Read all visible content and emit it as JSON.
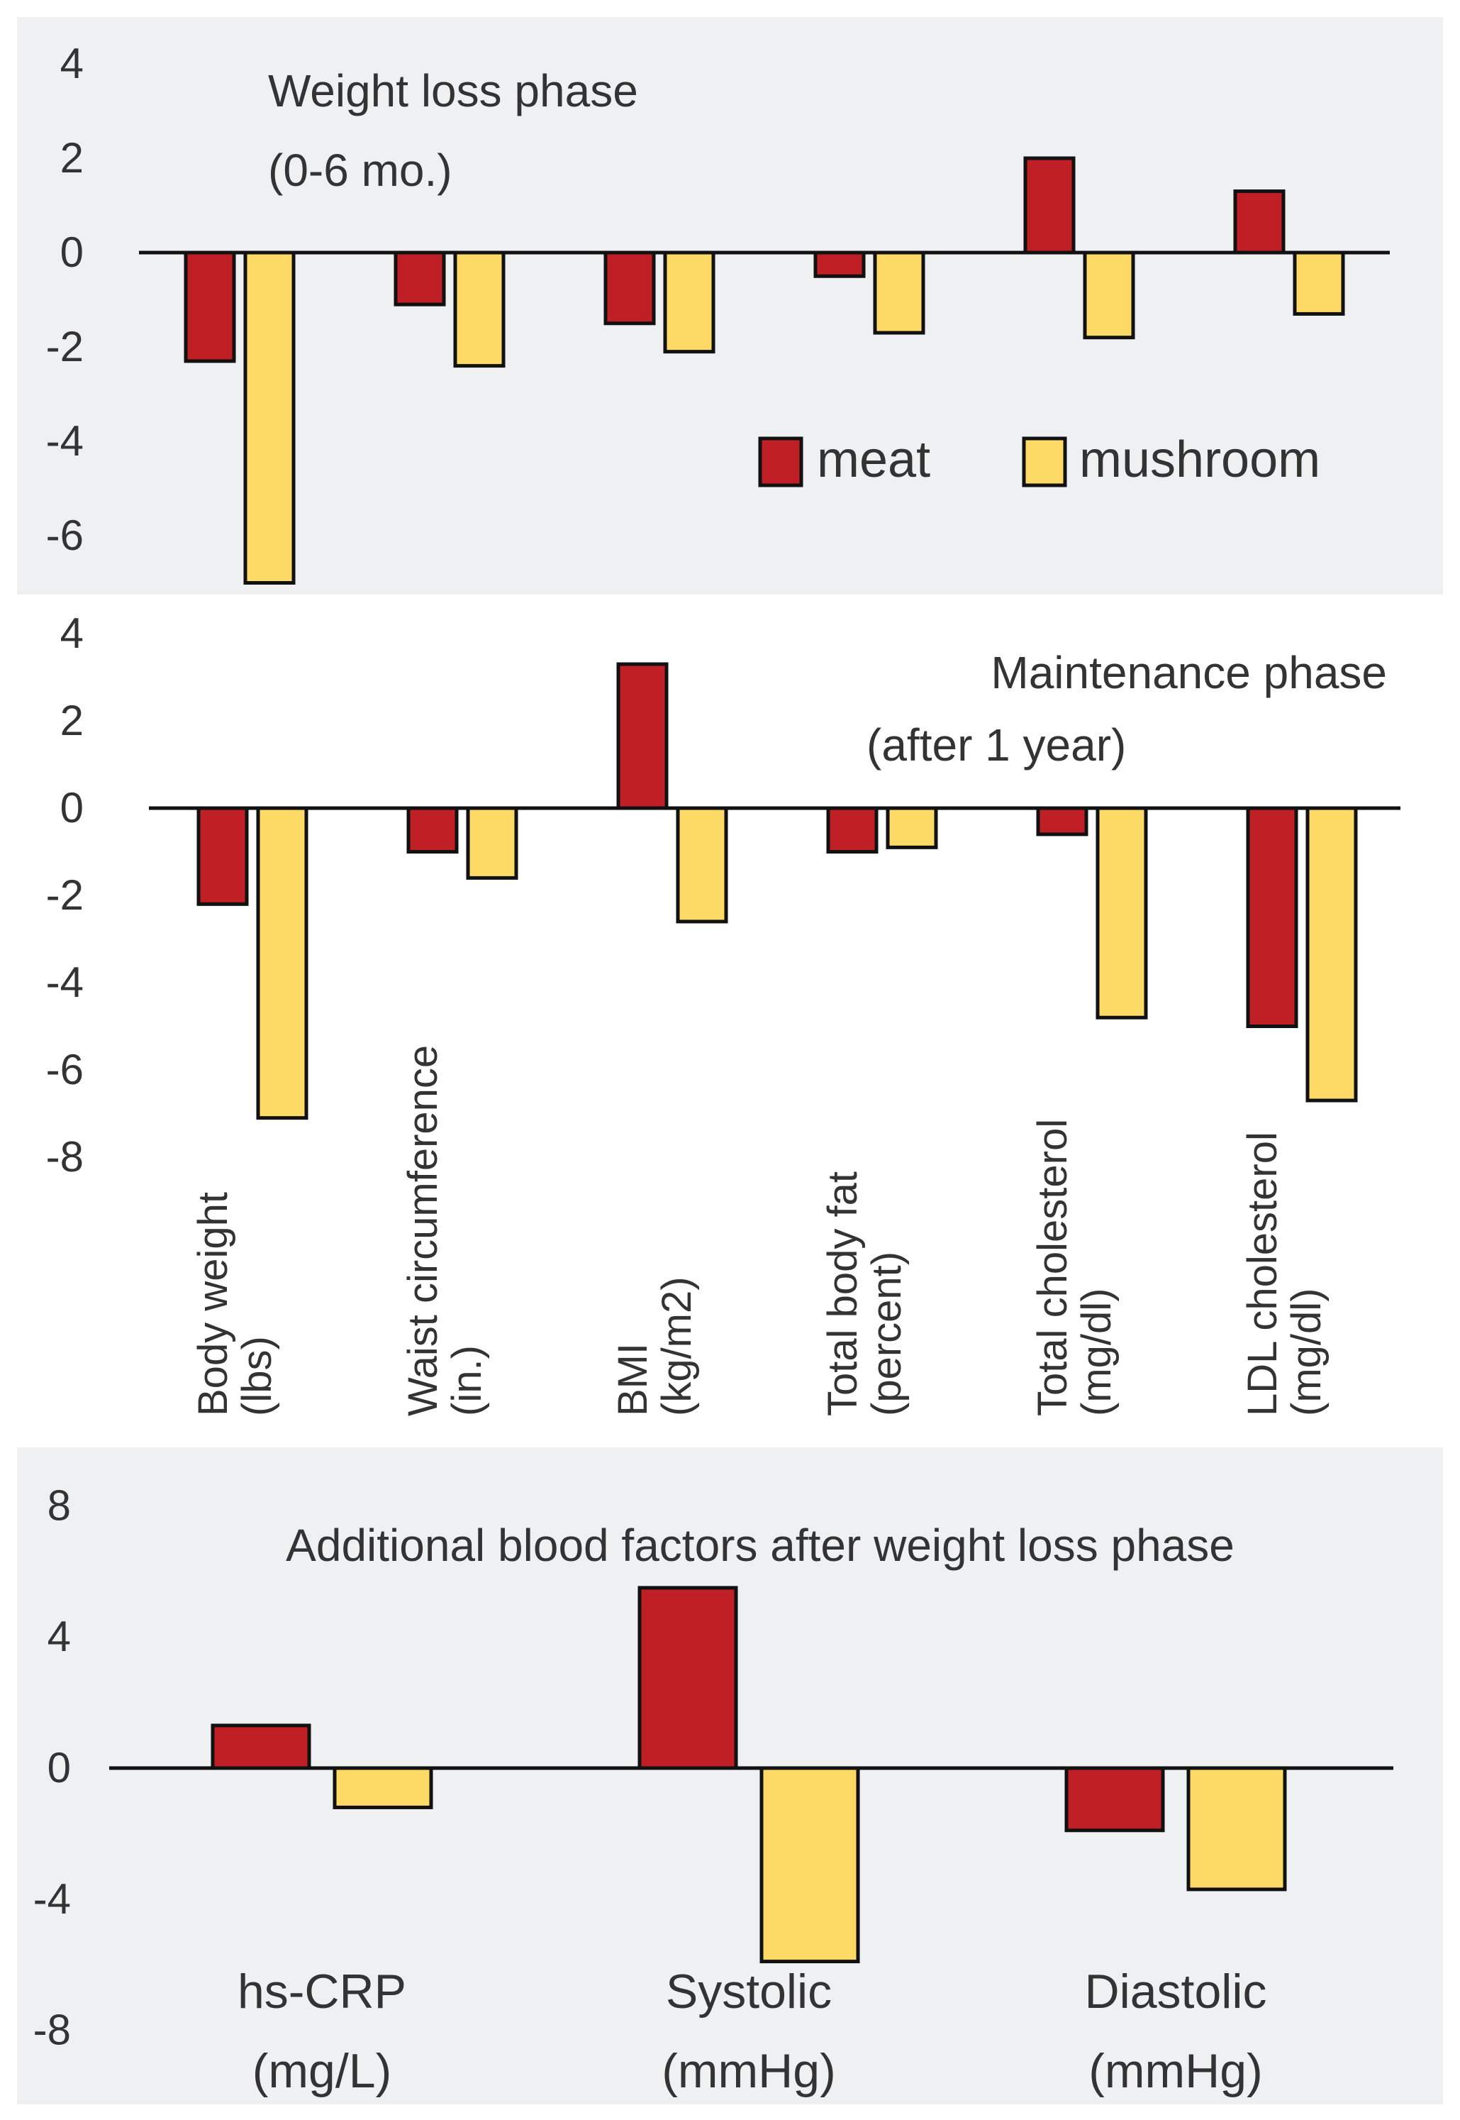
{
  "chart_data": [
    {
      "type": "bar",
      "panel": "weight-loss",
      "title": "Weight loss phase",
      "subtitle": "(0-6 mo.)",
      "categories": [
        "Body weight (lbs)",
        "Waist circumference (in.)",
        "BMI (kg/m2)",
        "Total body fat (percent)",
        "Total cholesterol (mg/dl)",
        "LDL cholesterol (mg/dl)"
      ],
      "series": [
        {
          "name": "meat",
          "color": "#c11f26",
          "values": [
            -2.3,
            -1.1,
            -1.5,
            -0.5,
            2.0,
            1.3
          ]
        },
        {
          "name": "mushroom",
          "color": "#fdd966",
          "values": [
            -7.0,
            -2.4,
            -2.1,
            -1.7,
            -1.8,
            -1.3
          ]
        }
      ],
      "yticks": [
        4,
        2,
        0,
        -2,
        -4,
        -6
      ],
      "ylim": [
        -7,
        4.6
      ],
      "xlabel": "",
      "ylabel": "",
      "legend": {
        "position": "bottom-right",
        "items": [
          "meat",
          "mushroom"
        ]
      },
      "grid": false
    },
    {
      "type": "bar",
      "panel": "maintenance",
      "title": "Maintenance phase",
      "subtitle": "(after 1 year)",
      "categories": [
        "Body weight (lbs)",
        "Waist circumference (in.)",
        "BMI (kg/m2)",
        "Total body fat (percent)",
        "Total cholesterol (mg/dl)",
        "LDL cholesterol (mg/dl)"
      ],
      "category_lines": [
        [
          "Body weight",
          "(lbs)"
        ],
        [
          "Waist circumference",
          "(in.)"
        ],
        [
          "BMI",
          "(kg/m2)"
        ],
        [
          "Total body fat",
          "(percent)"
        ],
        [
          "Total cholesterol",
          "(mg/dl)"
        ],
        [
          "LDL cholesterol",
          "(mg/dl)"
        ]
      ],
      "series": [
        {
          "name": "meat",
          "color": "#c11f26",
          "values": [
            -2.2,
            -1.0,
            3.3,
            -1.0,
            -0.6,
            -5.0
          ]
        },
        {
          "name": "mushroom",
          "color": "#fdd966",
          "values": [
            -7.1,
            -1.6,
            -2.6,
            -0.9,
            -4.8,
            -6.7
          ]
        }
      ],
      "yticks": [
        4,
        2,
        0,
        -2,
        -4,
        -6,
        -8
      ],
      "ylim": [
        -8,
        4
      ],
      "xlabel": "",
      "ylabel": "",
      "grid": false
    },
    {
      "type": "bar",
      "panel": "blood-factors",
      "title": "Additional blood factors after weight loss phase",
      "categories": [
        "hs-CRP (mg/L)",
        "Systolic (mmHg)",
        "Diastolic (mmHg)"
      ],
      "category_lines": [
        [
          "hs-CRP",
          "(mg/L)"
        ],
        [
          "Systolic",
          "(mmHg)"
        ],
        [
          "Diastolic",
          "(mmHg)"
        ]
      ],
      "series": [
        {
          "name": "meat",
          "color": "#c11f26",
          "values": [
            1.3,
            5.5,
            -1.9
          ]
        },
        {
          "name": "mushroom",
          "color": "#fdd966",
          "values": [
            -1.2,
            -5.9,
            -3.7
          ]
        }
      ],
      "yticks": [
        8,
        4,
        0,
        -4,
        -8
      ],
      "ylim": [
        -8,
        8
      ],
      "xlabel": "",
      "ylabel": "",
      "grid": false
    }
  ],
  "colors": {
    "panel_bg": "#eff0f2",
    "meat": "#c11f26",
    "mushroom": "#fdd966",
    "axis": "#111111"
  }
}
